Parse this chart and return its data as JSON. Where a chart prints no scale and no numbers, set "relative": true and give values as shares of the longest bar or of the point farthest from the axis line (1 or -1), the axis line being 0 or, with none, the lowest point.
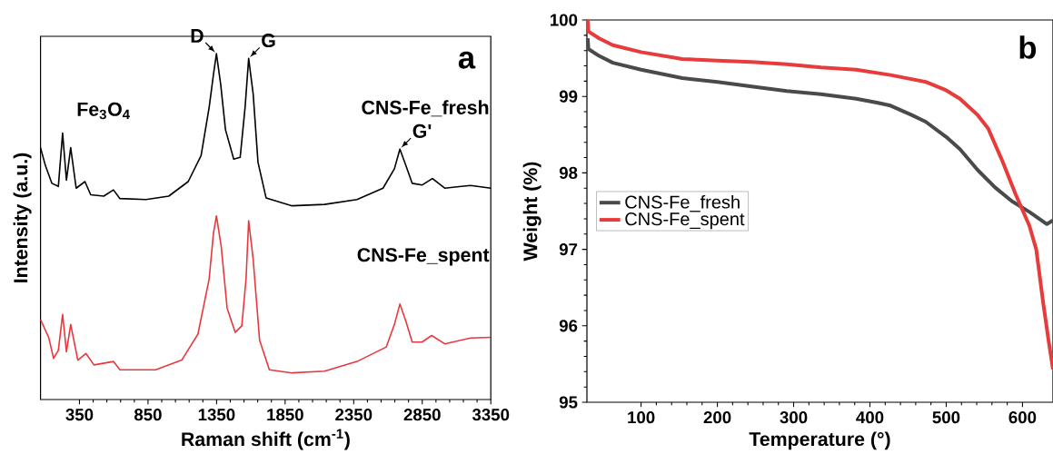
{
  "chart_data": [
    {
      "type": "line",
      "relative": true,
      "xlabel": "Raman shift (cm$^{-1}$)",
      "ylabel": "Intensity (a.u.)",
      "xlim": [
        66,
        3350
      ],
      "xticks": [
        350,
        850,
        1350,
        1850,
        2350,
        2850,
        3350
      ],
      "grid": false,
      "legend": false,
      "annotations": [
        "Fe$_{3}$O$_{4}$",
        "a",
        {
          "text": "D",
          "x": 1349,
          "y": 1.0
        },
        {
          "text": "G",
          "x": 1584,
          "y": 0.986
        },
        {
          "text": "G'",
          "x": 2687,
          "y": 0.724
        }
      ],
      "series": [
        {
          "name": "CNS-Fe_fresh",
          "color": "#000000",
          "x": [
            66,
            101,
            149,
            196,
            227,
            255,
            286,
            326,
            390,
            432,
            527,
            598,
            645,
            835,
            1001,
            1143,
            1237,
            1296,
            1327,
            1349,
            1380,
            1415,
            1475,
            1522,
            1558,
            1584,
            1617,
            1652,
            1711,
            1901,
            2138,
            2374,
            2564,
            2647,
            2687,
            2730,
            2777,
            2848,
            2924,
            3014,
            3203,
            3350
          ],
          "values": [
            0.728,
            0.677,
            0.625,
            0.616,
            0.77,
            0.634,
            0.728,
            0.611,
            0.63,
            0.592,
            0.588,
            0.606,
            0.581,
            0.578,
            0.588,
            0.63,
            0.705,
            0.845,
            0.939,
            1.0,
            0.911,
            0.78,
            0.695,
            0.7,
            0.845,
            0.986,
            0.883,
            0.686,
            0.583,
            0.56,
            0.564,
            0.578,
            0.611,
            0.667,
            0.724,
            0.677,
            0.625,
            0.62,
            0.639,
            0.611,
            0.619,
            0.611
          ]
        },
        {
          "name": "CNS-Fe_spent",
          "color": "#e8383d",
          "x": [
            66,
            125,
            161,
            196,
            227,
            255,
            286,
            338,
            397,
            456,
            598,
            645,
            906,
            1096,
            1214,
            1296,
            1327,
            1349,
            1384,
            1427,
            1486,
            1534,
            1565,
            1584,
            1617,
            1664,
            1735,
            1901,
            2138,
            2374,
            2588,
            2647,
            2687,
            2730,
            2777,
            2848,
            2919,
            3014,
            3203,
            3350
          ],
          "values": [
            0.231,
            0.18,
            0.119,
            0.142,
            0.246,
            0.138,
            0.217,
            0.114,
            0.133,
            0.1,
            0.11,
            0.086,
            0.086,
            0.114,
            0.189,
            0.349,
            0.48,
            0.531,
            0.442,
            0.264,
            0.194,
            0.213,
            0.349,
            0.517,
            0.405,
            0.171,
            0.086,
            0.077,
            0.082,
            0.11,
            0.152,
            0.217,
            0.276,
            0.227,
            0.166,
            0.166,
            0.185,
            0.161,
            0.178,
            0.18
          ]
        }
      ]
    },
    {
      "type": "line",
      "xlabel": "Temperature (°)",
      "ylabel": "Weight (%)",
      "xlim": [
        29,
        640
      ],
      "xticks": [
        100,
        200,
        300,
        400,
        500,
        600
      ],
      "ylim": [
        95,
        100
      ],
      "yticks": [
        95,
        96,
        97,
        98,
        99,
        100
      ],
      "grid": false,
      "legend": "left",
      "annotations": [
        "b"
      ],
      "series": [
        {
          "name": "CNS-Fe_fresh",
          "color": "#4a4a4a",
          "x": [
            30,
            31,
            45,
            63,
            100,
            154,
            200,
            245,
            291,
            336,
            382,
            409,
            427,
            454,
            473,
            500,
            518,
            541,
            564,
            586,
            609,
            632,
            640
          ],
          "values": [
            99.76,
            99.62,
            99.53,
            99.44,
            99.35,
            99.24,
            99.19,
            99.13,
            99.07,
            99.03,
            98.97,
            98.92,
            98.88,
            98.76,
            98.67,
            98.47,
            98.31,
            98.04,
            97.81,
            97.63,
            97.49,
            97.33,
            97.38
          ]
        },
        {
          "name": "CNS-Fe_spent",
          "color": "#e83b3b",
          "x": [
            30,
            31,
            45,
            63,
            100,
            154,
            200,
            245,
            291,
            336,
            382,
            427,
            473,
            500,
            518,
            541,
            555,
            573,
            591,
            609,
            618,
            627,
            634,
            640
          ],
          "values": [
            100.0,
            99.85,
            99.76,
            99.67,
            99.58,
            99.49,
            99.47,
            99.45,
            99.42,
            99.38,
            99.35,
            99.28,
            99.19,
            99.08,
            98.97,
            98.76,
            98.58,
            98.17,
            97.72,
            97.31,
            97.0,
            96.31,
            95.82,
            95.43
          ]
        }
      ]
    }
  ]
}
